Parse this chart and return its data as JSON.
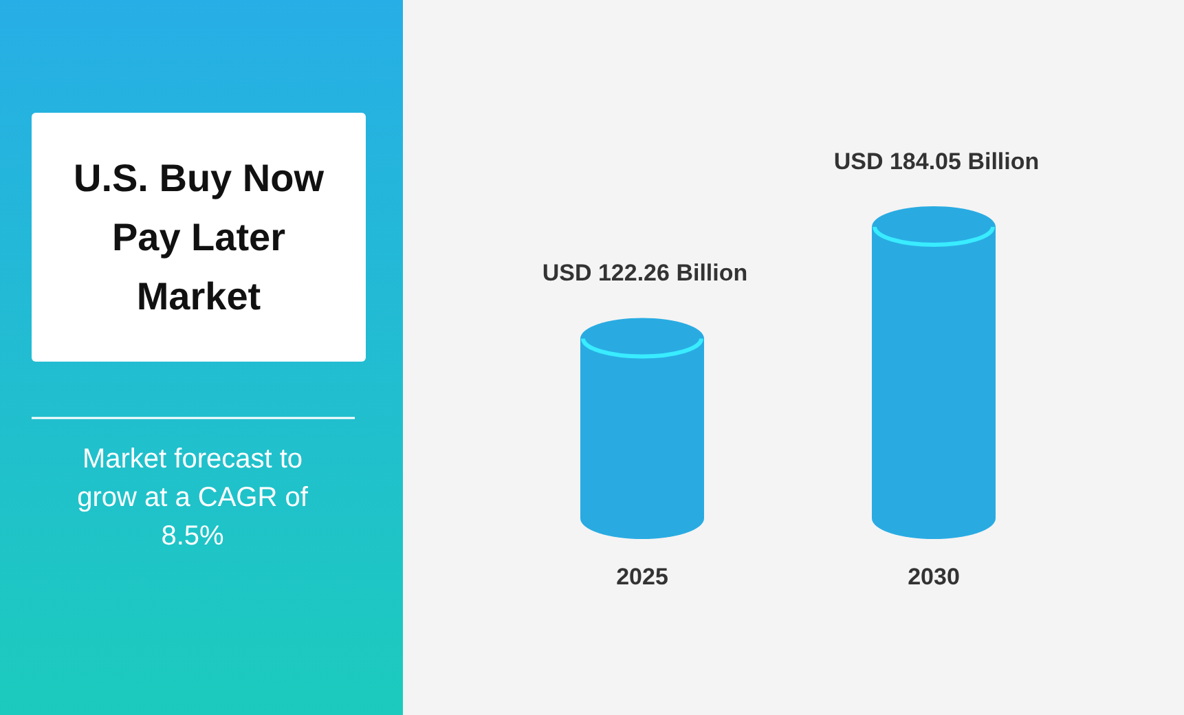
{
  "chart_data": {
    "type": "bar",
    "title": "U.S. Buy Now Pay Later Market",
    "subtitle": "Market forecast to grow at a CAGR of 8.5%",
    "categories": [
      "2025",
      "2030"
    ],
    "series": [
      {
        "color": "#29abe2",
        "values": [
          122.26,
          184.05
        ],
        "value_labels": [
          "USD 122.26 Billion",
          "USD 184.05 Billion"
        ]
      }
    ]
  }
}
